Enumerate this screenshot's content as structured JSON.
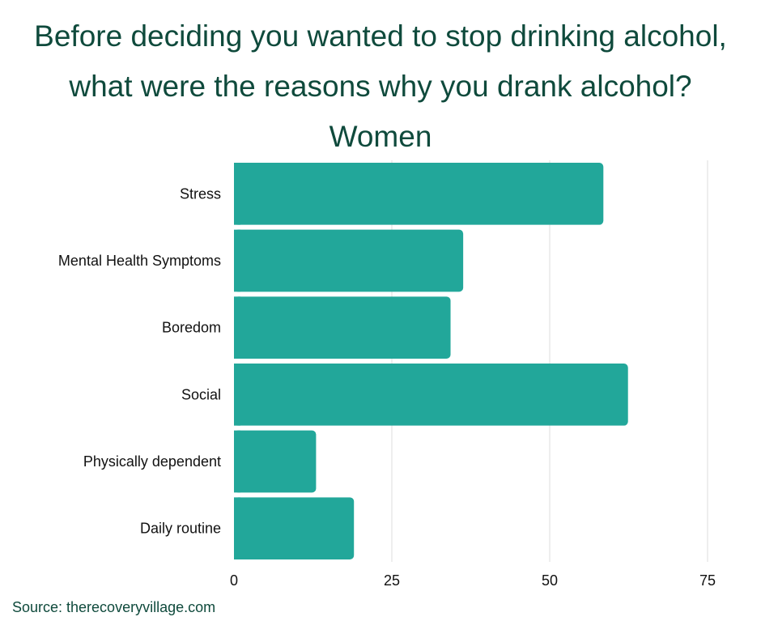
{
  "title_lines": [
    "Before deciding you wanted to stop drinking alcohol,",
    "what were the reasons why you drank alcohol?",
    "Women"
  ],
  "source": "Source: therecoveryvillage.com",
  "colors": {
    "bar": "#22a79a",
    "title": "#0f4a3c",
    "grid": "#dcdcdc"
  },
  "chart_data": {
    "type": "bar",
    "orientation": "horizontal",
    "title": "Before deciding you wanted to stop drinking alcohol, what were the reasons why you drank alcohol? Women",
    "categories": [
      "Stress",
      "Mental Health Symptoms",
      "Boredom",
      "Social",
      "Physically dependent",
      "Daily routine"
    ],
    "values": [
      58.5,
      36.3,
      34.3,
      62.4,
      13,
      19
    ],
    "xlim": [
      0,
      75
    ],
    "xticks": [
      0,
      25,
      50,
      75
    ],
    "grid": true,
    "xlabel": "",
    "ylabel": ""
  }
}
